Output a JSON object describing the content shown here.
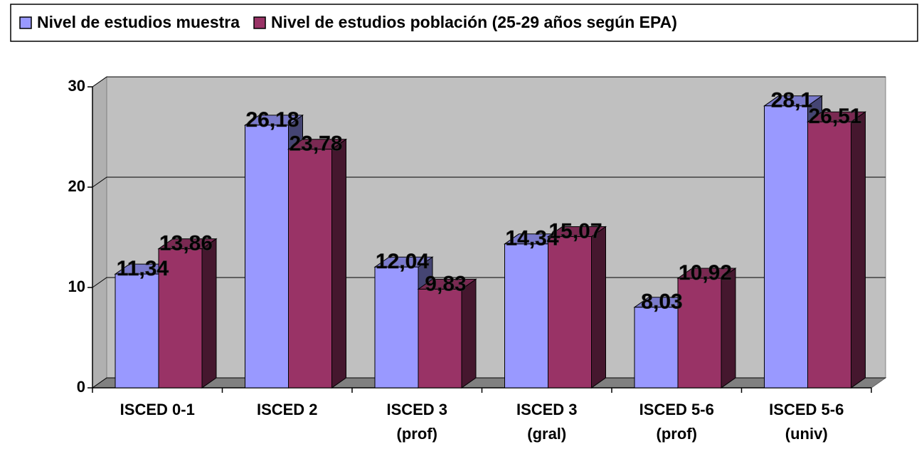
{
  "chart_data": {
    "type": "bar3d",
    "categories": [
      "ISCED 0-1",
      "ISCED 2",
      "ISCED 3 (prof)",
      "ISCED 3 (gral)",
      "ISCED 5-6 (prof)",
      "ISCED 5-6 (univ)"
    ],
    "series": [
      {
        "name": "Nivel de estudios muestra",
        "color": "#9999ff",
        "values": [
          11.34,
          26.18,
          12.04,
          14.34,
          8.03,
          28.1
        ],
        "value_labels": [
          "11,34",
          "26,18",
          "12,04",
          "14,34",
          "8,03",
          "28,1"
        ]
      },
      {
        "name": "Nivel de estudios población (25-29 años según EPA)",
        "color": "#993366",
        "values": [
          13.86,
          23.78,
          9.83,
          15.07,
          10.92,
          26.51
        ],
        "value_labels": [
          "13,86",
          "23,78",
          "9,83",
          "15,07",
          "10,92",
          "26,51"
        ]
      }
    ],
    "ylim": [
      0,
      30
    ],
    "yticks": [
      0,
      10,
      20,
      30
    ],
    "grid": true,
    "legend": "top"
  }
}
